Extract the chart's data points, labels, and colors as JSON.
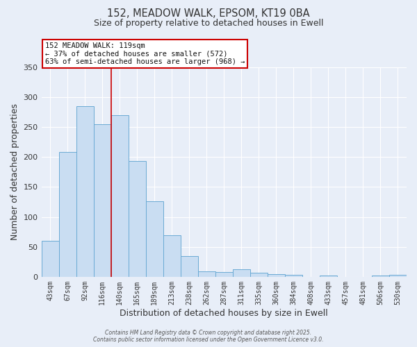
{
  "title1": "152, MEADOW WALK, EPSOM, KT19 0BA",
  "title2": "Size of property relative to detached houses in Ewell",
  "xlabel": "Distribution of detached houses by size in Ewell",
  "ylabel": "Number of detached properties",
  "categories": [
    "43sqm",
    "67sqm",
    "92sqm",
    "116sqm",
    "140sqm",
    "165sqm",
    "189sqm",
    "213sqm",
    "238sqm",
    "262sqm",
    "287sqm",
    "311sqm",
    "335sqm",
    "360sqm",
    "384sqm",
    "408sqm",
    "433sqm",
    "457sqm",
    "481sqm",
    "506sqm",
    "530sqm"
  ],
  "values": [
    60,
    209,
    285,
    255,
    270,
    193,
    126,
    69,
    35,
    9,
    8,
    13,
    7,
    5,
    3,
    0,
    2,
    0,
    0,
    2,
    3
  ],
  "bar_color": "#c9ddf2",
  "bar_edge_color": "#6aaad4",
  "vline_x_index": 3,
  "vline_color": "#cc0000",
  "annotation_line1": "152 MEADOW WALK: 119sqm",
  "annotation_line2": "← 37% of detached houses are smaller (572)",
  "annotation_line3": "63% of semi-detached houses are larger (968) →",
  "annotation_box_facecolor": "#ffffff",
  "annotation_box_edgecolor": "#cc0000",
  "ylim": [
    0,
    350
  ],
  "yticks": [
    0,
    50,
    100,
    150,
    200,
    250,
    300,
    350
  ],
  "bg_color": "#e8eef8",
  "grid_color": "#ffffff",
  "footer_line1": "Contains HM Land Registry data © Crown copyright and database right 2025.",
  "footer_line2": "Contains public sector information licensed under the Open Government Licence v3.0."
}
